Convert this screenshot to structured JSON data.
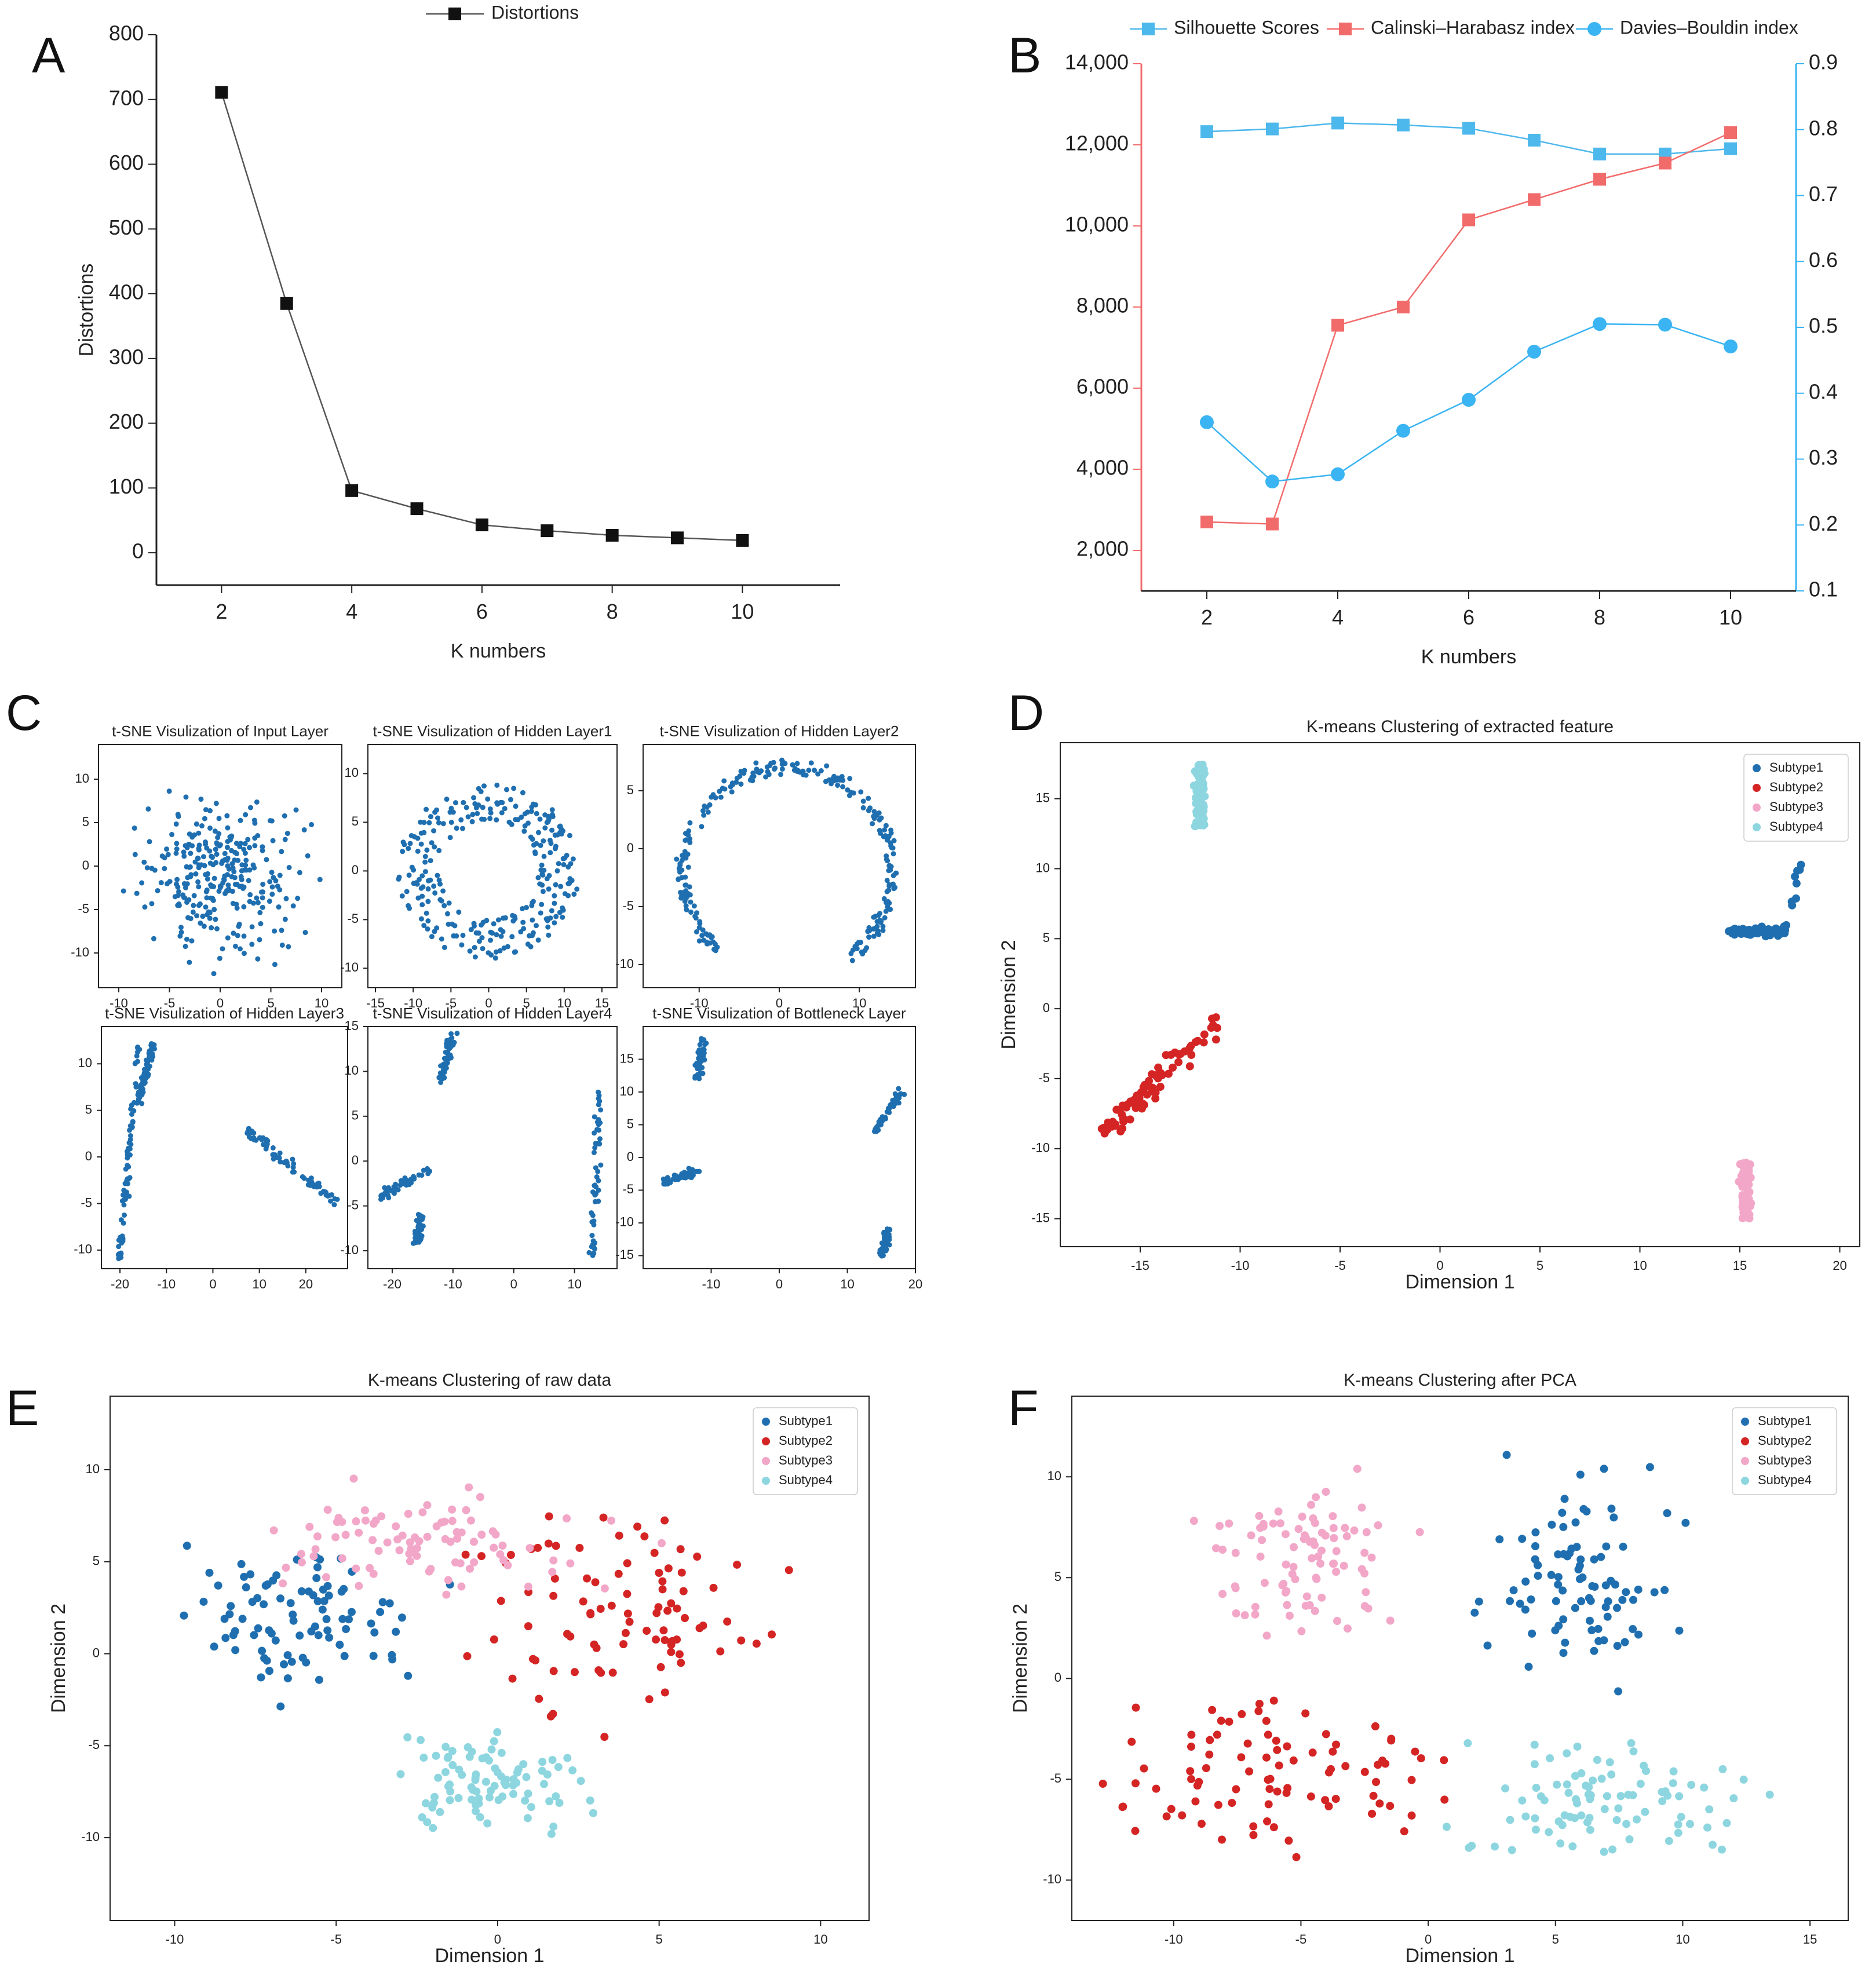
{
  "colors": {
    "axis": "#222222",
    "distortion": "#111111",
    "silhouette": "#4db8ec",
    "calinski": "#f26b6b",
    "davies": "#3ab4f2",
    "subtype1": "#1f6fb0",
    "subtype2": "#d42424",
    "subtype3": "#f2a7c8",
    "subtype4": "#8dd6e0"
  },
  "panels": {
    "A": "A",
    "B": "B",
    "C": "C",
    "D": "D",
    "E": "E",
    "F": "F"
  },
  "chart_data": [
    {
      "id": "A",
      "type": "line",
      "legend": "Distortions",
      "xlabel": "K numbers",
      "ylabel": "Distortions",
      "x": [
        2,
        3,
        4,
        5,
        6,
        7,
        8,
        9,
        10
      ],
      "series": [
        {
          "name": "Distortions",
          "values": [
            711,
            385,
            96,
            68,
            43,
            34,
            27,
            23,
            19
          ]
        }
      ],
      "xlim": [
        1,
        11.5
      ],
      "ylim": [
        -50,
        800
      ],
      "xticks": [
        "2",
        "4",
        "6",
        "8",
        "10"
      ],
      "yticks": [
        "0",
        "100",
        "200",
        "300",
        "400",
        "500",
        "600",
        "700",
        "800"
      ]
    },
    {
      "id": "B",
      "type": "line",
      "xlabel": "K numbers",
      "legend": [
        "Silhouette Scores",
        "Calinski–Harabasz index",
        "Davies–Bouldin index"
      ],
      "x": [
        2,
        3,
        4,
        5,
        6,
        7,
        8,
        9,
        10
      ],
      "series": [
        {
          "name": "Silhouette Scores",
          "axis": "right",
          "values": [
            0.797,
            0.801,
            0.81,
            0.807,
            0.802,
            0.784,
            0.763,
            0.763,
            0.771
          ]
        },
        {
          "name": "Calinski–Harabasz index",
          "axis": "left",
          "values": [
            2700,
            2650,
            7550,
            8000,
            10150,
            10650,
            11150,
            11550,
            12300
          ]
        },
        {
          "name": "Davies–Bouldin index",
          "axis": "right",
          "values": [
            0.356,
            0.266,
            0.277,
            0.343,
            0.39,
            0.463,
            0.505,
            0.504,
            0.471
          ]
        }
      ],
      "xlim": [
        1,
        11
      ],
      "ylim_left": [
        1000,
        14000
      ],
      "ylim_right": [
        0.1,
        0.9
      ],
      "xticks": [
        "2",
        "4",
        "6",
        "8",
        "10"
      ],
      "yticks_left": [
        "2,000",
        "4,000",
        "6,000",
        "8,000",
        "10,000",
        "12,000",
        "14,000"
      ],
      "yticks_right": [
        "0.1",
        "0.2",
        "0.3",
        "0.4",
        "0.5",
        "0.6",
        "0.7",
        "0.8",
        "0.9"
      ]
    },
    {
      "id": "C1",
      "type": "scatter",
      "title": "t-SNE Visulization of Input Layer",
      "shape": "blob",
      "center": [
        0,
        -1
      ],
      "spread": [
        11,
        12
      ],
      "n": 300,
      "xlim": [
        -12,
        12
      ],
      "ylim": [
        -14,
        14
      ],
      "xticks": [
        "-10",
        "-5",
        "0",
        "5",
        "10"
      ],
      "yticks": [
        "-10",
        "-5",
        "0",
        "5",
        "10"
      ]
    },
    {
      "id": "C2",
      "type": "scatter",
      "title": "t-SNE Visulization of Hidden Layer1",
      "shape": "ring",
      "center": [
        0,
        0
      ],
      "radius": [
        12,
        9
      ],
      "n": 280,
      "xlim": [
        -16,
        17
      ],
      "ylim": [
        -12,
        13
      ],
      "xticks": [
        "-15",
        "-10",
        "-5",
        "0",
        "5",
        "10",
        "15"
      ],
      "yticks": [
        "-10",
        "-5",
        "0",
        "5",
        "10"
      ]
    },
    {
      "id": "C3",
      "type": "scatter",
      "title": "t-SNE Visulization of Hidden Layer2",
      "shape": "arc",
      "n": 260,
      "xlim": [
        -17,
        17
      ],
      "ylim": [
        -12,
        9
      ],
      "xticks": [
        "-10",
        "0",
        "10"
      ],
      "yticks": [
        "-10",
        "-5",
        "0",
        "5"
      ]
    },
    {
      "id": "C4",
      "type": "scatter",
      "title": "t-SNE Visulization of Hidden Layer3",
      "n": 220,
      "clusters": [
        {
          "from": [
            -20,
            -11
          ],
          "to": [
            -16,
            12
          ]
        },
        {
          "from": [
            -16,
            6
          ],
          "to": [
            -13,
            12
          ]
        },
        {
          "from": [
            7,
            3
          ],
          "to": [
            27,
            -5
          ]
        }
      ],
      "xlim": [
        -24,
        29
      ],
      "ylim": [
        -12,
        14
      ],
      "xticks": [
        "-20",
        "-10",
        "0",
        "10",
        "20"
      ],
      "yticks": [
        "-10",
        "-5",
        "0",
        "5",
        "10"
      ]
    },
    {
      "id": "C5",
      "type": "scatter",
      "title": "t-SNE Visulization of Hidden Layer4",
      "n": 200,
      "clusters": [
        {
          "from": [
            -12,
            9
          ],
          "to": [
            -10,
            14
          ]
        },
        {
          "from": [
            -22,
            -4
          ],
          "to": [
            -14,
            -1
          ]
        },
        {
          "from": [
            13,
            -11
          ],
          "to": [
            14,
            8
          ]
        },
        {
          "from": [
            -16,
            -9
          ],
          "to": [
            -15,
            -6
          ]
        }
      ],
      "xlim": [
        -24,
        17
      ],
      "ylim": [
        -12,
        15
      ],
      "xticks": [
        "-20",
        "-10",
        "0",
        "10"
      ],
      "yticks": [
        "-10",
        "-5",
        "0",
        "5",
        "10",
        "15"
      ]
    },
    {
      "id": "C6",
      "type": "scatter",
      "title": "t-SNE Visulization of Bottleneck Layer",
      "n": 200,
      "clusters": [
        {
          "from": [
            -12,
            12
          ],
          "to": [
            -11,
            18
          ]
        },
        {
          "from": [
            -17,
            -4
          ],
          "to": [
            -12,
            -2
          ]
        },
        {
          "from": [
            14,
            4
          ],
          "to": [
            18,
            10
          ]
        },
        {
          "from": [
            15,
            -15
          ],
          "to": [
            16,
            -11
          ]
        }
      ],
      "xlim": [
        -20,
        20
      ],
      "ylim": [
        -17,
        20
      ],
      "xticks": [
        "-10",
        "0",
        "10",
        "20"
      ],
      "yticks": [
        "-15",
        "-10",
        "-5",
        "0",
        "5",
        "10",
        "15"
      ]
    },
    {
      "id": "D",
      "type": "scatter",
      "title": "K-means Clustering of extracted feature",
      "xlabel": "Dimension 1",
      "ylabel": "Dimension 2",
      "legend": [
        "Subtype1",
        "Subtype2",
        "Subtype3",
        "Subtype4"
      ],
      "series": [
        {
          "name": "Subtype1",
          "center": [
            16,
            6
          ],
          "spread": [
            4,
            5
          ]
        },
        {
          "name": "Subtype2",
          "center": [
            -14,
            -4
          ],
          "spread": [
            4,
            7
          ]
        },
        {
          "name": "Subtype3",
          "center": [
            15,
            -14
          ],
          "spread": [
            2,
            3
          ]
        },
        {
          "name": "Subtype4",
          "center": [
            -12,
            15
          ],
          "spread": [
            2,
            4
          ]
        }
      ],
      "xlim": [
        -19,
        21
      ],
      "ylim": [
        -17,
        19
      ],
      "xticks": [
        "-15",
        "-10",
        "-5",
        "0",
        "5",
        "10",
        "15",
        "20"
      ],
      "yticks": [
        "-15",
        "-10",
        "-5",
        "0",
        "5",
        "10",
        "15"
      ]
    },
    {
      "id": "E",
      "type": "scatter",
      "title": "K-means Clustering of raw data",
      "xlabel": "Dimension 1",
      "ylabel": "Dimension 2",
      "legend": [
        "Subtype1",
        "Subtype2",
        "Subtype3",
        "Subtype4"
      ],
      "series": [
        {
          "name": "Subtype1",
          "center": [
            -6,
            2
          ],
          "spread": [
            10,
            12
          ]
        },
        {
          "name": "Subtype2",
          "center": [
            4,
            2
          ],
          "spread": [
            12,
            14
          ]
        },
        {
          "name": "Subtype3",
          "center": [
            -2,
            6
          ],
          "spread": [
            14,
            8
          ]
        },
        {
          "name": "Subtype4",
          "center": [
            0,
            -7
          ],
          "spread": [
            8,
            8
          ]
        }
      ],
      "xlim": [
        -12,
        11.5
      ],
      "ylim": [
        -14.5,
        14
      ],
      "xticks": [
        "-10",
        "-5",
        "0",
        "5",
        "10"
      ],
      "yticks": [
        "-10",
        "-5",
        "0",
        "5",
        "10"
      ]
    },
    {
      "id": "F",
      "type": "scatter",
      "title": "K-means Clustering after PCA",
      "xlabel": "Dimension 1",
      "ylabel": "Dimension 2",
      "legend": [
        "Subtype1",
        "Subtype2",
        "Subtype3",
        "Subtype4"
      ],
      "series": [
        {
          "name": "Subtype1",
          "center": [
            6,
            5
          ],
          "spread": [
            10,
            14
          ]
        },
        {
          "name": "Subtype2",
          "center": [
            -6,
            -5
          ],
          "spread": [
            16,
            12
          ]
        },
        {
          "name": "Subtype3",
          "center": [
            -5,
            6
          ],
          "spread": [
            10,
            10
          ]
        },
        {
          "name": "Subtype4",
          "center": [
            7,
            -6
          ],
          "spread": [
            16,
            8
          ]
        }
      ],
      "xlim": [
        -14,
        16.5
      ],
      "ylim": [
        -12,
        14
      ],
      "xticks": [
        "-10",
        "-5",
        "0",
        "5",
        "10",
        "15"
      ],
      "yticks": [
        "-10",
        "-5",
        "0",
        "5",
        "10"
      ]
    }
  ]
}
